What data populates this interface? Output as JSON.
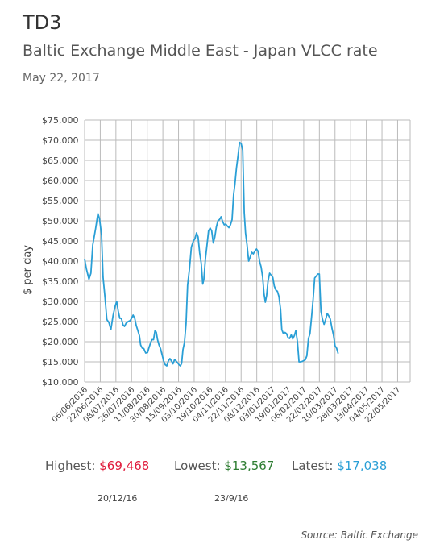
{
  "header": {
    "code": "TD3",
    "title": "Baltic Exchange Middle East - Japan VLCC rate",
    "date": "May 22, 2017"
  },
  "colors": {
    "line": "#2a9fd6",
    "grid": "#bbbbbb",
    "highest": "#e0193a",
    "lowest": "#2e7d32",
    "latest": "#2a9fd6"
  },
  "chart_data": {
    "type": "line",
    "ylabel": "$ per day",
    "ylim": [
      10000,
      75000
    ],
    "y_ticks": [
      {
        "value": 10000,
        "label": "$10,000"
      },
      {
        "value": 15000,
        "label": "$15,000"
      },
      {
        "value": 20000,
        "label": "$20,000"
      },
      {
        "value": 25000,
        "label": "$25,000"
      },
      {
        "value": 30000,
        "label": "$30,000"
      },
      {
        "value": 35000,
        "label": "$35,000"
      },
      {
        "value": 40000,
        "label": "$40,000"
      },
      {
        "value": 45000,
        "label": "$45,000"
      },
      {
        "value": 50000,
        "label": "$50,000"
      },
      {
        "value": 55000,
        "label": "$55,000"
      },
      {
        "value": 60000,
        "label": "$60,000"
      },
      {
        "value": 65000,
        "label": "$65,000"
      },
      {
        "value": 70000,
        "label": "$70,000"
      },
      {
        "value": 75000,
        "label": "$75,000"
      }
    ],
    "x_ticks": [
      "06/06/2016",
      "22/06/2016",
      "08/07/2016",
      "26/07/2016",
      "11/08/2016",
      "30/08/2016",
      "15/09/2016",
      "03/10/2016",
      "19/10/2016",
      "04/11/2016",
      "22/11/2016",
      "08/12/2016",
      "03/01/2017",
      "19/01/2017",
      "06/02/2017",
      "22/02/2017",
      "10/03/2017",
      "28/03/2017",
      "13/04/2017",
      "04/05/2017",
      "22/05/2017"
    ],
    "x_range": [
      0,
      20.8
    ],
    "grid": true,
    "points": [
      [
        0.0,
        40500
      ],
      [
        0.12,
        38000
      ],
      [
        0.28,
        35500
      ],
      [
        0.4,
        37000
      ],
      [
        0.52,
        44000
      ],
      [
        0.7,
        48000
      ],
      [
        0.85,
        51800
      ],
      [
        0.95,
        50500
      ],
      [
        1.08,
        46500
      ],
      [
        1.18,
        36000
      ],
      [
        1.3,
        31000
      ],
      [
        1.42,
        25500
      ],
      [
        1.55,
        24800
      ],
      [
        1.68,
        23000
      ],
      [
        1.82,
        26500
      ],
      [
        1.95,
        28800
      ],
      [
        2.05,
        30000
      ],
      [
        2.15,
        27500
      ],
      [
        2.25,
        25800
      ],
      [
        2.35,
        25800
      ],
      [
        2.45,
        24200
      ],
      [
        2.55,
        23800
      ],
      [
        2.65,
        24600
      ],
      [
        2.78,
        25000
      ],
      [
        2.9,
        25200
      ],
      [
        3.0,
        25800
      ],
      [
        3.1,
        26600
      ],
      [
        3.2,
        25800
      ],
      [
        3.3,
        24000
      ],
      [
        3.4,
        22800
      ],
      [
        3.5,
        21500
      ],
      [
        3.58,
        19200
      ],
      [
        3.68,
        18400
      ],
      [
        3.78,
        18300
      ],
      [
        3.9,
        17200
      ],
      [
        4.02,
        17300
      ],
      [
        4.12,
        18600
      ],
      [
        4.22,
        19800
      ],
      [
        4.3,
        20500
      ],
      [
        4.4,
        20500
      ],
      [
        4.5,
        22800
      ],
      [
        4.58,
        22300
      ],
      [
        4.66,
        20500
      ],
      [
        4.75,
        19200
      ],
      [
        4.85,
        18300
      ],
      [
        4.95,
        16800
      ],
      [
        5.05,
        15200
      ],
      [
        5.15,
        14300
      ],
      [
        5.25,
        14000
      ],
      [
        5.35,
        15200
      ],
      [
        5.45,
        15800
      ],
      [
        5.55,
        15200
      ],
      [
        5.65,
        14500
      ],
      [
        5.75,
        15600
      ],
      [
        5.85,
        15200
      ],
      [
        5.95,
        14700
      ],
      [
        6.05,
        14200
      ],
      [
        6.12,
        14000
      ],
      [
        6.2,
        14600
      ],
      [
        6.28,
        18000
      ],
      [
        6.38,
        19800
      ],
      [
        6.48,
        24500
      ],
      [
        6.58,
        34000
      ],
      [
        6.7,
        38000
      ],
      [
        6.82,
        43500
      ],
      [
        6.95,
        45000
      ],
      [
        7.05,
        45500
      ],
      [
        7.15,
        47000
      ],
      [
        7.25,
        46000
      ],
      [
        7.35,
        42000
      ],
      [
        7.45,
        39500
      ],
      [
        7.55,
        34300
      ],
      [
        7.62,
        35500
      ],
      [
        7.72,
        40500
      ],
      [
        7.82,
        44000
      ],
      [
        7.92,
        47500
      ],
      [
        8.02,
        48200
      ],
      [
        8.12,
        47500
      ],
      [
        8.22,
        44500
      ],
      [
        8.32,
        46000
      ],
      [
        8.42,
        48500
      ],
      [
        8.52,
        50000
      ],
      [
        8.62,
        50300
      ],
      [
        8.72,
        51000
      ],
      [
        8.82,
        49800
      ],
      [
        8.92,
        49000
      ],
      [
        9.02,
        49200
      ],
      [
        9.12,
        48700
      ],
      [
        9.22,
        48300
      ],
      [
        9.32,
        49000
      ],
      [
        9.42,
        50300
      ],
      [
        9.52,
        56500
      ],
      [
        9.6,
        59000
      ],
      [
        9.7,
        63000
      ],
      [
        9.8,
        66000
      ],
      [
        9.9,
        69468
      ],
      [
        10.0,
        69200
      ],
      [
        10.1,
        67500
      ],
      [
        10.2,
        52000
      ],
      [
        10.28,
        47000
      ],
      [
        10.38,
        44000
      ],
      [
        10.48,
        40000
      ],
      [
        10.58,
        41000
      ],
      [
        10.68,
        42200
      ],
      [
        10.78,
        41800
      ],
      [
        10.88,
        42500
      ],
      [
        10.98,
        43000
      ],
      [
        11.08,
        42500
      ],
      [
        11.18,
        40000
      ],
      [
        11.28,
        38500
      ],
      [
        11.38,
        36000
      ],
      [
        11.46,
        32000
      ],
      [
        11.55,
        29800
      ],
      [
        11.63,
        31500
      ],
      [
        11.72,
        35000
      ],
      [
        11.82,
        37000
      ],
      [
        11.92,
        36500
      ],
      [
        12.02,
        36000
      ],
      [
        12.12,
        33800
      ],
      [
        12.22,
        32800
      ],
      [
        12.32,
        32500
      ],
      [
        12.42,
        31200
      ],
      [
        12.52,
        28000
      ],
      [
        12.6,
        23000
      ],
      [
        12.7,
        22000
      ],
      [
        12.8,
        22300
      ],
      [
        12.9,
        22000
      ],
      [
        13.0,
        21000
      ],
      [
        13.1,
        20800
      ],
      [
        13.2,
        21700
      ],
      [
        13.3,
        20700
      ],
      [
        13.4,
        21500
      ],
      [
        13.5,
        22800
      ],
      [
        13.6,
        19800
      ],
      [
        13.7,
        15000
      ],
      [
        13.8,
        15000
      ],
      [
        13.9,
        15100
      ],
      [
        14.0,
        15300
      ],
      [
        14.1,
        15500
      ],
      [
        14.2,
        16500
      ],
      [
        14.3,
        20800
      ],
      [
        14.4,
        22000
      ],
      [
        14.5,
        26000
      ],
      [
        14.6,
        30500
      ],
      [
        14.7,
        35800
      ],
      [
        14.8,
        36300
      ],
      [
        14.9,
        36800
      ],
      [
        15.0,
        36800
      ],
      [
        15.1,
        27500
      ],
      [
        15.2,
        25600
      ],
      [
        15.3,
        24300
      ],
      [
        15.4,
        25500
      ],
      [
        15.5,
        27000
      ],
      [
        15.6,
        26400
      ],
      [
        15.7,
        25600
      ],
      [
        15.8,
        23400
      ],
      [
        15.9,
        21700
      ],
      [
        16.0,
        19000
      ],
      [
        16.1,
        18400
      ],
      [
        16.2,
        17038
      ]
    ],
    "stats": {
      "highest": {
        "label": "Highest:",
        "value": "$69,468",
        "date": "20/12/16"
      },
      "lowest": {
        "label": "Lowest:",
        "value": "$13,567",
        "date": "23/9/16"
      },
      "latest": {
        "label": "Latest:",
        "value": "$17,038"
      }
    }
  },
  "source": "Source: Baltic Exchange"
}
